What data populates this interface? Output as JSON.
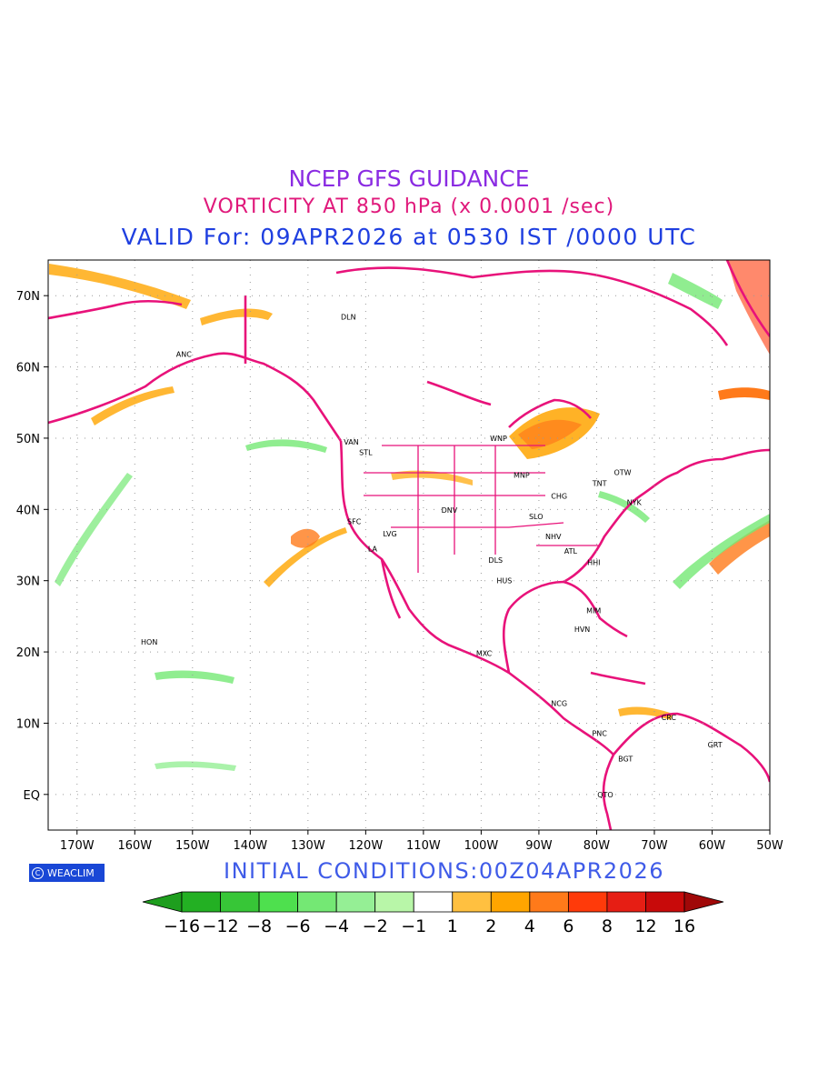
{
  "title": "NCEP GFS GUIDANCE",
  "subtitle": "VORTICITY AT 850 hPa (x 0.0001 /sec)",
  "valid": "VALID For: 09APR2026 at 0530 IST /0000 UTC",
  "initial": "INITIAL CONDITIONS:00Z04APR2026",
  "logo": "WEACLIM",
  "map": {
    "lon_range": [
      -175,
      -50
    ],
    "lat_range": [
      -5,
      75
    ],
    "lat_labels": [
      {
        "lat": 70,
        "text": "70N"
      },
      {
        "lat": 60,
        "text": "60N"
      },
      {
        "lat": 50,
        "text": "50N"
      },
      {
        "lat": 40,
        "text": "40N"
      },
      {
        "lat": 30,
        "text": "30N"
      },
      {
        "lat": 20,
        "text": "20N"
      },
      {
        "lat": 10,
        "text": "10N"
      },
      {
        "lat": 0,
        "text": "EQ"
      }
    ],
    "lon_labels": [
      {
        "lon": -170,
        "text": "170W"
      },
      {
        "lon": -160,
        "text": "160W"
      },
      {
        "lon": -150,
        "text": "150W"
      },
      {
        "lon": -140,
        "text": "140W"
      },
      {
        "lon": -130,
        "text": "130W"
      },
      {
        "lon": -120,
        "text": "120W"
      },
      {
        "lon": -110,
        "text": "110W"
      },
      {
        "lon": -100,
        "text": "100W"
      },
      {
        "lon": -90,
        "text": "90W"
      },
      {
        "lon": -80,
        "text": "80W"
      },
      {
        "lon": -70,
        "text": "70W"
      },
      {
        "lon": -60,
        "text": "60W"
      },
      {
        "lon": -50,
        "text": "50W"
      }
    ],
    "stations": [
      {
        "code": "DLN",
        "lon": -123.0,
        "lat": 67.0
      },
      {
        "code": "ANC",
        "lon": -151.5,
        "lat": 61.8
      },
      {
        "code": "VAN",
        "lon": -122.5,
        "lat": 49.5
      },
      {
        "code": "STL",
        "lon": -120.0,
        "lat": 48.0
      },
      {
        "code": "WNP",
        "lon": -97.0,
        "lat": 50.0
      },
      {
        "code": "MNP",
        "lon": -93.0,
        "lat": 44.8
      },
      {
        "code": "OTW",
        "lon": -75.5,
        "lat": 45.2
      },
      {
        "code": "TNT",
        "lon": -79.5,
        "lat": 43.7
      },
      {
        "code": "CHG",
        "lon": -86.5,
        "lat": 41.9
      },
      {
        "code": "NYK",
        "lon": -73.5,
        "lat": 41.0
      },
      {
        "code": "DNV",
        "lon": -105.5,
        "lat": 39.9
      },
      {
        "code": "SLO",
        "lon": -90.5,
        "lat": 39.0
      },
      {
        "code": "SFC",
        "lon": -122.0,
        "lat": 38.3
      },
      {
        "code": "LVG",
        "lon": -115.8,
        "lat": 36.6
      },
      {
        "code": "NHV",
        "lon": -87.5,
        "lat": 36.2
      },
      {
        "code": "LA",
        "lon": -118.8,
        "lat": 34.5
      },
      {
        "code": "ATL",
        "lon": -84.5,
        "lat": 34.2
      },
      {
        "code": "DLS",
        "lon": -97.5,
        "lat": 32.9
      },
      {
        "code": "HHI",
        "lon": -80.5,
        "lat": 32.6
      },
      {
        "code": "HUS",
        "lon": -96.0,
        "lat": 30.0
      },
      {
        "code": "MIM",
        "lon": -80.5,
        "lat": 25.8
      },
      {
        "code": "HVN",
        "lon": -82.5,
        "lat": 23.2
      },
      {
        "code": "HON",
        "lon": -157.5,
        "lat": 21.4
      },
      {
        "code": "MXC",
        "lon": -99.5,
        "lat": 19.8
      },
      {
        "code": "NCG",
        "lon": -86.5,
        "lat": 12.8
      },
      {
        "code": "CRC",
        "lon": -67.5,
        "lat": 10.8
      },
      {
        "code": "PNC",
        "lon": -79.5,
        "lat": 8.6
      },
      {
        "code": "GRT",
        "lon": -59.5,
        "lat": 7.0
      },
      {
        "code": "BGT",
        "lon": -75.0,
        "lat": 5.0
      },
      {
        "code": "QTO",
        "lon": -78.5,
        "lat": 0.0
      }
    ]
  },
  "colorbar": {
    "colors": [
      "#1e9e1e",
      "#23b023",
      "#37c637",
      "#4ee04e",
      "#74e874",
      "#95ef95",
      "#b8f6a8",
      "#ffffff",
      "#ffc040",
      "#ffa500",
      "#ff7a1a",
      "#ff3a0a",
      "#e61e14",
      "#c80a0a",
      "#a00808"
    ],
    "labels": [
      "-16",
      "-12",
      "-8",
      "-6",
      "-4",
      "-2",
      "-1",
      "1",
      "2",
      "4",
      "6",
      "8",
      "12",
      "16"
    ]
  }
}
